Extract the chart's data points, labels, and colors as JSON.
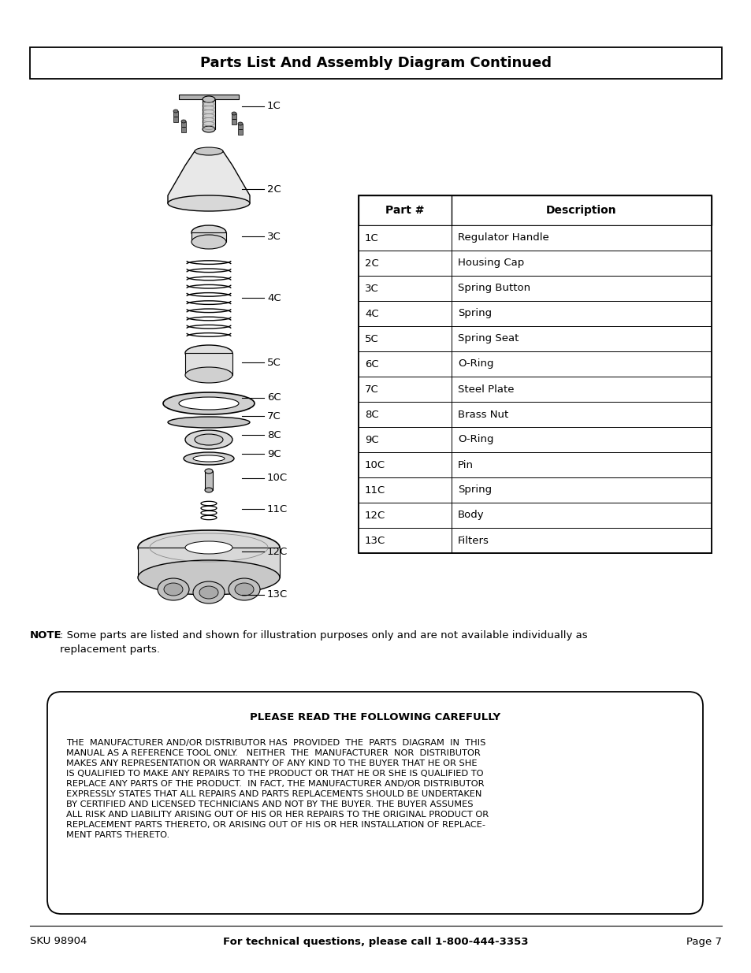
{
  "title": "Parts List And Assembly Diagram Continued",
  "page_bg": "#ffffff",
  "table_headers": [
    "Part #",
    "Description"
  ],
  "table_rows": [
    [
      "1C",
      "Regulator Handle"
    ],
    [
      "2C",
      "Housing Cap"
    ],
    [
      "3C",
      "Spring Button"
    ],
    [
      "4C",
      "Spring"
    ],
    [
      "5C",
      "Spring Seat"
    ],
    [
      "6C",
      "O-Ring"
    ],
    [
      "7C",
      "Steel Plate"
    ],
    [
      "8C",
      "Brass Nut"
    ],
    [
      "9C",
      "O-Ring"
    ],
    [
      "10C",
      "Pin"
    ],
    [
      "11C",
      "Spring"
    ],
    [
      "12C",
      "Body"
    ],
    [
      "13C",
      "Filters"
    ]
  ],
  "note_bold": "NOTE",
  "note_regular": ": Some parts are listed and shown for illustration purposes only and are not available individually as\nreplacement parts.",
  "warning_title": "PLEASE READ THE FOLLOWING CAREFULLY",
  "warning_body": "THE  MANUFACTURER AND/OR DISTRIBUTOR HAS  PROVIDED  THE  PARTS  DIAGRAM  IN  THIS\nMANUAL AS A REFERENCE TOOL ONLY.   NEITHER  THE  MANUFACTURER  NOR  DISTRIBUTOR\nMAKES ANY REPRESENTATION OR WARRANTY OF ANY KIND TO THE BUYER THAT HE OR SHE\nIS QUALIFIED TO MAKE ANY REPAIRS TO THE PRODUCT OR THAT HE OR SHE IS QUALIFIED TO\nREPLACE ANY PARTS OF THE PRODUCT.  IN FACT, THE MANUFACTURER AND/OR DISTRIBUTOR\nEXPRESSLY STATES THAT ALL REPAIRS AND PARTS REPLACEMENTS SHOULD BE UNDERTAKEN\nBY CERTIFIED AND LICENSED TECHNICIANS AND NOT BY THE BUYER. THE BUYER ASSUMES\nALL RISK AND LIABILITY ARISING OUT OF HIS OR HER REPAIRS TO THE ORIGINAL PRODUCT OR\nREPLACEMENT PARTS THERETO, OR ARISING OUT OF HIS OR HER INSTALLATION OF REPLACE-\nMENT PARTS THERETO.",
  "footer_sku": "SKU 98904",
  "footer_phone": "For technical questions, please call 1-800-444-3353",
  "footer_page": "Page 7"
}
